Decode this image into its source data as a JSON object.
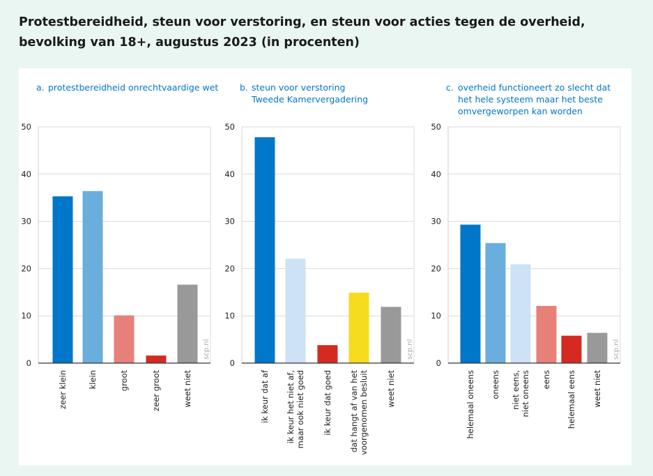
{
  "title": "Protestbereidheid, steun voor verstoring, en steun voor acties tegen de overheid, bevolking van 18+, augustus 2023 (in procenten)",
  "watermark": "scp.nl",
  "chart_data": [
    {
      "type": "bar",
      "letter": "a.",
      "title_lines": [
        "protestbereidheid onrechtvaardige wet"
      ],
      "ylim": [
        0,
        50
      ],
      "yticks": [
        0,
        10,
        20,
        30,
        40,
        50
      ],
      "categories": [
        [
          "zeer klein"
        ],
        [
          "klein"
        ],
        [
          "groot"
        ],
        [
          "zeer groot"
        ],
        [
          "weet niet"
        ]
      ],
      "values": [
        35.3,
        36.4,
        10.1,
        1.6,
        16.6
      ],
      "colors": [
        "#0077c8",
        "#6aaede",
        "#e8807a",
        "#d42a21",
        "#999999"
      ]
    },
    {
      "type": "bar",
      "letter": "b.",
      "title_lines": [
        "steun voor verstoring",
        "Tweede Kamervergadering"
      ],
      "ylim": [
        0,
        50
      ],
      "yticks": [
        0,
        10,
        20,
        30,
        40,
        50
      ],
      "categories": [
        [
          "ik keur dat af"
        ],
        [
          "ik keur het niet af,",
          "maar ook niet goed"
        ],
        [
          "ik keur dat goed"
        ],
        [
          "dat hangt af van het",
          "voorgenomen besluit"
        ],
        [
          "weet niet"
        ]
      ],
      "values": [
        47.8,
        22.1,
        3.8,
        14.9,
        11.9
      ],
      "colors": [
        "#0077c8",
        "#cde2f4",
        "#d42a21",
        "#f5dc1e",
        "#999999"
      ]
    },
    {
      "type": "bar",
      "letter": "c.",
      "title_lines": [
        "overheid functioneert zo slecht dat",
        "het hele systeem maar het beste",
        "omvergeworpen kan worden"
      ],
      "ylim": [
        0,
        50
      ],
      "yticks": [
        0,
        10,
        20,
        30,
        40,
        50
      ],
      "categories": [
        [
          "helemaal oneens"
        ],
        [
          "oneens"
        ],
        [
          "niet eens,",
          "niet oneens"
        ],
        [
          "eens"
        ],
        [
          "helemaal eens"
        ],
        [
          "weet niet"
        ]
      ],
      "values": [
        29.3,
        25.4,
        20.9,
        12.1,
        5.8,
        6.4
      ],
      "colors": [
        "#0077c8",
        "#6aaede",
        "#cde2f4",
        "#e8807a",
        "#d42a21",
        "#999999"
      ]
    }
  ]
}
